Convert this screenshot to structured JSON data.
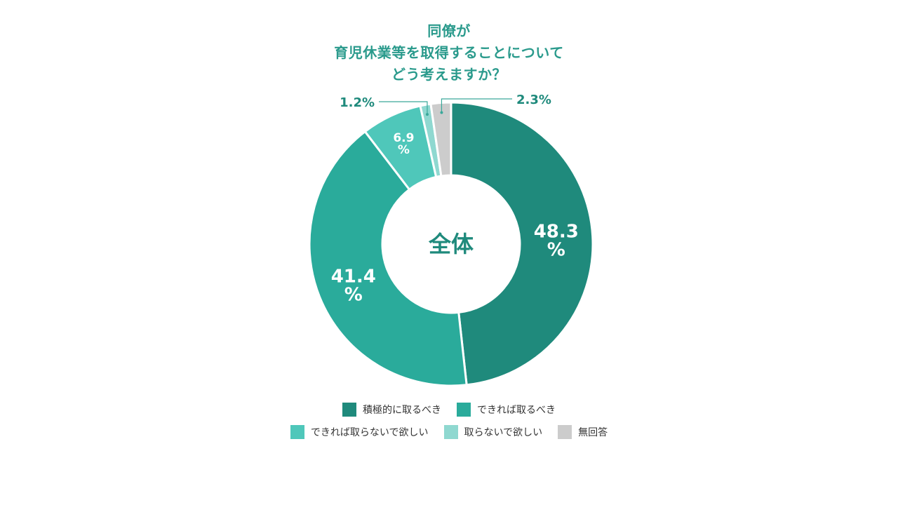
{
  "title_lines": [
    "同僚が",
    "育児休業等を取得することについて",
    "どう考えますか？"
  ],
  "center_label": "全体",
  "colors": {
    "title": "#2a9a8c",
    "center": "#1f8a7c",
    "leader": "#3aa89a"
  },
  "chart_data": {
    "type": "pie",
    "donut": true,
    "title": "同僚が 育児休業等を取得することについて どう考えますか？",
    "start": "top",
    "direction": "clockwise",
    "slices": [
      {
        "label": "積極的に取るべき",
        "value": 48.3,
        "display": "48.3",
        "unit": "%",
        "color": "#1f8a7c"
      },
      {
        "label": "できれば取るべき",
        "value": 41.4,
        "display": "41.4",
        "unit": "%",
        "color": "#2aab9b"
      },
      {
        "label": "できれば取らないで欲しい",
        "value": 6.9,
        "display": "6.9",
        "unit": "%",
        "color": "#4fc7ba"
      },
      {
        "label": "取らないで欲しい",
        "value": 1.2,
        "display": "1.2%",
        "unit": "",
        "color": "#8fd8d0"
      },
      {
        "label": "無回答",
        "value": 2.3,
        "display": "2.3%",
        "unit": "",
        "color": "#cccccc"
      }
    ],
    "legend_position": "bottom"
  },
  "legend": {
    "row1": [
      {
        "label": "積極的に取るべき",
        "color": "#1f8a7c"
      },
      {
        "label": "できれば取るべき",
        "color": "#2aab9b"
      }
    ],
    "row2": [
      {
        "label": "できれば取らないで欲しい",
        "color": "#4fc7ba"
      },
      {
        "label": "取らないで欲しい",
        "color": "#8fd8d0"
      },
      {
        "label": "無回答",
        "color": "#cccccc"
      }
    ]
  }
}
